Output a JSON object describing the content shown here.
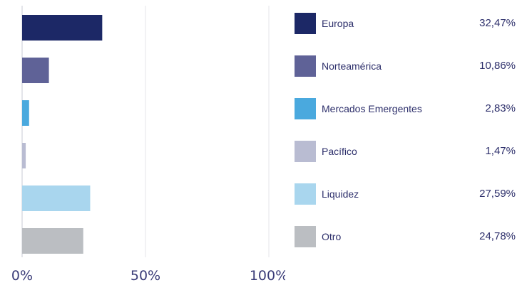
{
  "chart_data": {
    "type": "bar",
    "orientation": "horizontal",
    "categories": [
      "Europa",
      "Norteamérica",
      "Mercados Emergentes",
      "Pacífico",
      "Liquidez",
      "Otro"
    ],
    "values": [
      32.47,
      10.86,
      2.83,
      1.47,
      27.59,
      24.78
    ],
    "value_labels": [
      "32,47%",
      "10,86%",
      "2,83%",
      "1,47%",
      "27,59%",
      "24,78%"
    ],
    "colors": [
      "#1c2866",
      "#5f6297",
      "#4aa9de",
      "#b9bcd2",
      "#a9d6ee",
      "#bbbec2"
    ],
    "x_ticks": [
      0,
      50,
      100
    ],
    "x_tick_labels": [
      "0%",
      "50%",
      "100%"
    ],
    "xlim": [
      0,
      100
    ],
    "grid": true,
    "legend_placement": "right",
    "title": "",
    "xlabel": "",
    "ylabel": ""
  }
}
